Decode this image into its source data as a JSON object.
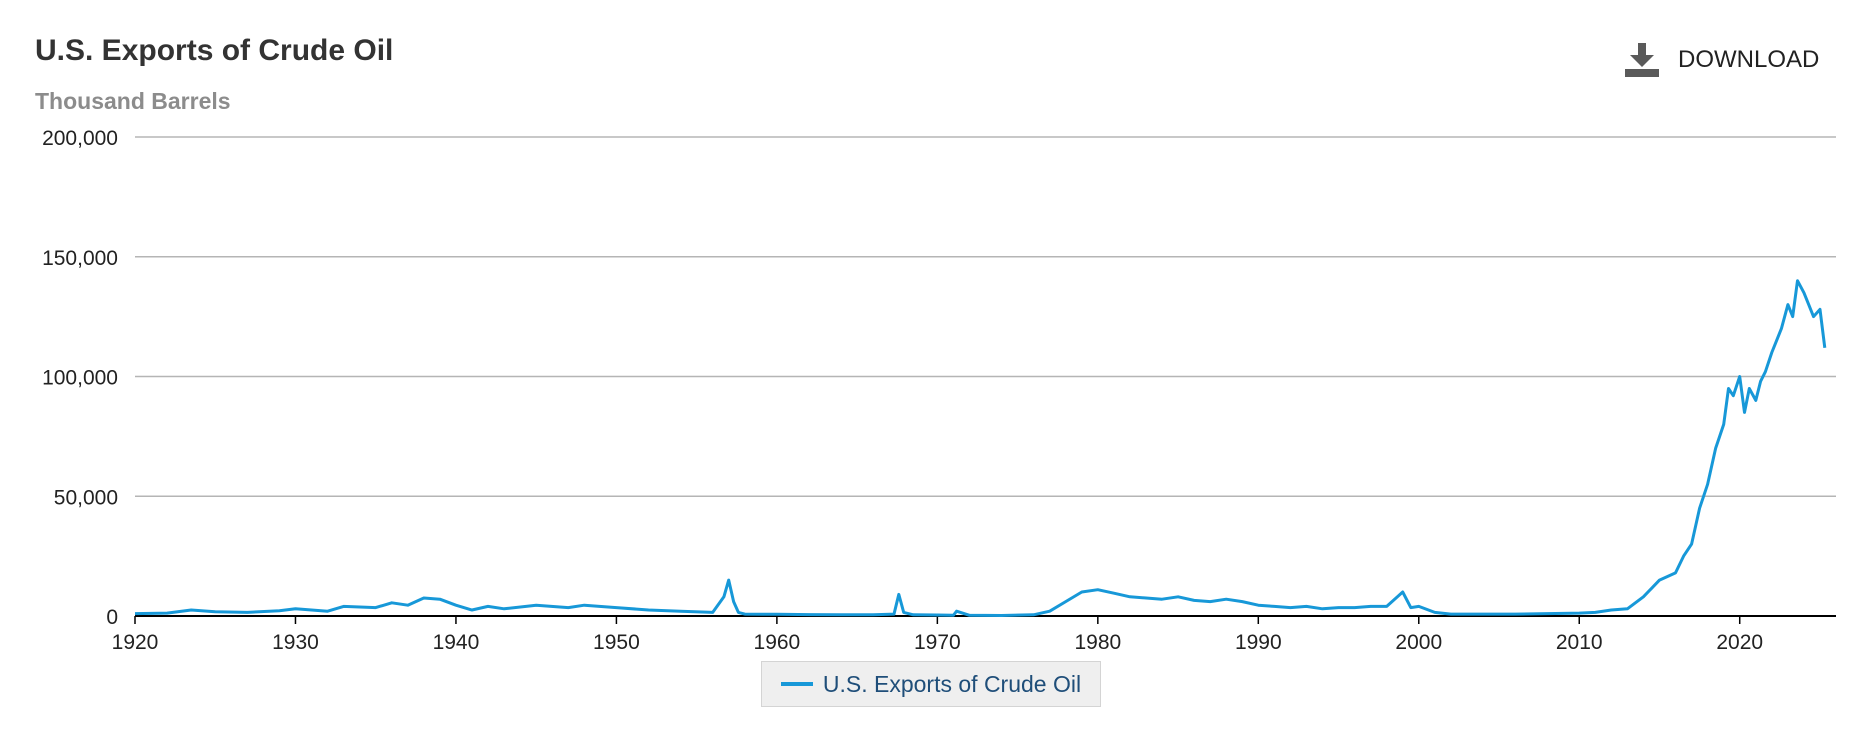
{
  "header": {
    "title": "U.S. Exports of Crude Oil",
    "subtitle": "Thousand Barrels",
    "download_label": "DOWNLOAD",
    "download_icon": "download-icon"
  },
  "colors": {
    "series": "#1798d8",
    "grid": "#b5b5b5",
    "axis": "#000000",
    "text": "#222222"
  },
  "legend": {
    "label": "U.S. Exports of Crude Oil"
  },
  "chart_data": {
    "type": "line",
    "title": "U.S. Exports of Crude Oil",
    "ylabel": "Thousand Barrels",
    "xlim": [
      1920,
      2026
    ],
    "ylim": [
      0,
      200000
    ],
    "yticks": [
      0,
      50000,
      100000,
      150000,
      200000
    ],
    "ytick_labels": [
      "0",
      "50,000",
      "100,000",
      "150,000",
      "200,000"
    ],
    "xticks": [
      1920,
      1930,
      1940,
      1950,
      1960,
      1970,
      1980,
      1990,
      2000,
      2010,
      2020
    ],
    "xtick_labels": [
      "1920",
      "1930",
      "1940",
      "1950",
      "1960",
      "1970",
      "1980",
      "1990",
      "2000",
      "2010",
      "2020"
    ],
    "grid": true,
    "legend_position": "bottom-center",
    "series": [
      {
        "name": "U.S. Exports of Crude Oil",
        "x": [
          1920,
          1922,
          1923.5,
          1925,
          1927,
          1929,
          1930,
          1932,
          1933,
          1935,
          1936,
          1937,
          1938,
          1939,
          1940,
          1941,
          1942,
          1943,
          1945,
          1947,
          1948,
          1950,
          1952,
          1954,
          1956,
          1956.7,
          1957,
          1957.3,
          1957.6,
          1958,
          1960,
          1962,
          1964,
          1966,
          1967.3,
          1967.6,
          1967.9,
          1968.5,
          1970,
          1971,
          1971.2,
          1972,
          1974,
          1976,
          1977,
          1978,
          1979,
          1980,
          1981,
          1982,
          1983,
          1984,
          1985,
          1986,
          1987,
          1988,
          1989,
          1990,
          1991,
          1992,
          1993,
          1994,
          1995,
          1996,
          1997,
          1998,
          1999,
          1999.5,
          2000,
          2001,
          2002,
          2004,
          2006,
          2008,
          2010,
          2011,
          2012,
          2013,
          2014,
          2015,
          2016,
          2016.5,
          2017,
          2017.5,
          2018,
          2018.5,
          2019,
          2019.3,
          2019.6,
          2020,
          2020.3,
          2020.6,
          2021,
          2021.3,
          2021.6,
          2022,
          2022.3,
          2022.6,
          2023,
          2023.3,
          2023.6,
          2024,
          2024.3,
          2024.6,
          2025,
          2025.3
        ],
        "y": [
          1000,
          1200,
          2500,
          1800,
          1500,
          2200,
          3000,
          2000,
          4000,
          3500,
          5500,
          4500,
          7500,
          7000,
          4500,
          2500,
          4000,
          3000,
          4500,
          3500,
          4500,
          3500,
          2500,
          2000,
          1500,
          8000,
          15000,
          6000,
          1500,
          800,
          700,
          600,
          500,
          500,
          800,
          9000,
          1500,
          500,
          400,
          300,
          2000,
          300,
          200,
          500,
          2000,
          6000,
          10000,
          11000,
          9500,
          8000,
          7500,
          7000,
          8000,
          6500,
          6000,
          7000,
          6000,
          4500,
          4000,
          3500,
          4000,
          3000,
          3500,
          3500,
          4000,
          4000,
          10000,
          3500,
          4000,
          1500,
          800,
          800,
          800,
          1000,
          1200,
          1500,
          2500,
          3000,
          8000,
          15000,
          18000,
          25000,
          30000,
          45000,
          55000,
          70000,
          80000,
          95000,
          92000,
          100000,
          85000,
          95000,
          90000,
          98000,
          102000,
          110000,
          115000,
          120000,
          130000,
          125000,
          140000,
          135000,
          130000,
          125000,
          128000,
          112000
        ]
      }
    ]
  }
}
